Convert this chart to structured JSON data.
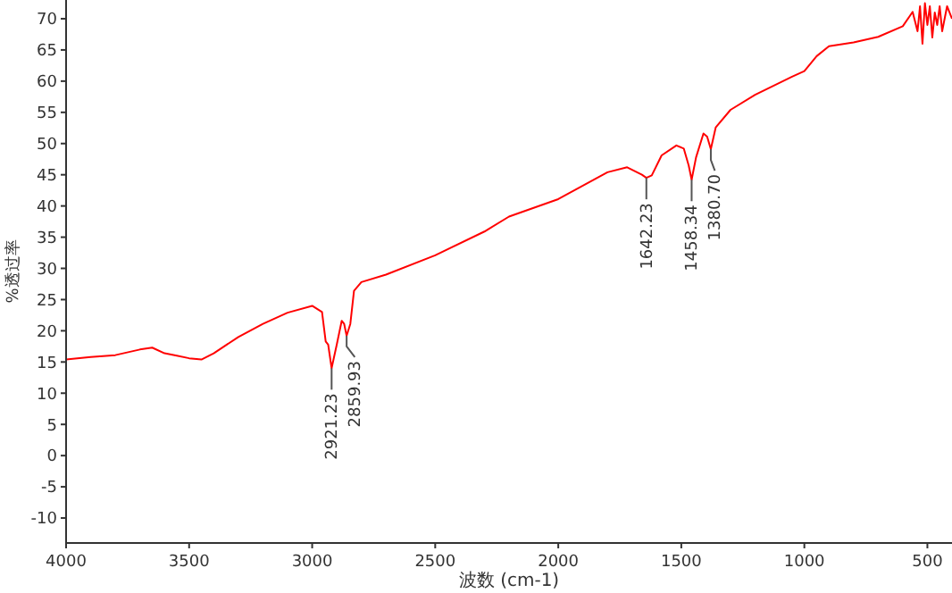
{
  "chart_data": {
    "type": "line",
    "xlabel": "波数 (cm-1)",
    "ylabel": "%透过率",
    "xlim": [
      4000,
      400
    ],
    "ylim": [
      -14,
      73
    ],
    "xticks": [
      4000,
      3500,
      3000,
      2500,
      2000,
      1500,
      1000,
      500
    ],
    "yticks": [
      -10,
      -5,
      0,
      5,
      10,
      15,
      20,
      25,
      30,
      35,
      40,
      45,
      50,
      55,
      60,
      65,
      70
    ],
    "grid": false,
    "marker": "none",
    "line_style": "solid",
    "series": [
      {
        "color": "#ff0000",
        "x": [
          4000,
          3900,
          3800,
          3700,
          3650,
          3600,
          3550,
          3500,
          3450,
          3400,
          3300,
          3200,
          3100,
          3000,
          2960,
          2945,
          2935,
          2921,
          2900,
          2880,
          2870,
          2860,
          2845,
          2830,
          2800,
          2700,
          2500,
          2300,
          2200,
          2000,
          1800,
          1720,
          1660,
          1642,
          1620,
          1580,
          1520,
          1490,
          1470,
          1458,
          1440,
          1410,
          1395,
          1380,
          1360,
          1300,
          1200,
          1050,
          1000,
          950,
          900,
          800,
          700,
          600,
          560,
          540,
          530,
          520,
          510,
          500,
          490,
          480,
          470,
          460,
          450,
          440,
          420,
          400
        ],
        "values": [
          15.4,
          15.8,
          16.1,
          17.0,
          17.3,
          16.4,
          16.0,
          15.6,
          15.4,
          16.4,
          19.0,
          21.1,
          22.9,
          24.0,
          23.0,
          18.3,
          17.8,
          14.0,
          17.8,
          21.6,
          21.1,
          19.2,
          21.1,
          26.4,
          27.8,
          29.0,
          32.1,
          35.9,
          38.3,
          41.1,
          45.4,
          46.2,
          45.0,
          44.5,
          44.9,
          48.1,
          49.7,
          49.2,
          46.5,
          44.2,
          47.8,
          51.6,
          51.1,
          49.1,
          52.6,
          55.4,
          57.8,
          60.7,
          61.6,
          64.0,
          65.6,
          66.2,
          67.1,
          68.8,
          71.1,
          68,
          72,
          66,
          72.5,
          69,
          72,
          67,
          71,
          69,
          72,
          68,
          72,
          70
        ]
      }
    ],
    "annotations": [
      {
        "text": "2921.23",
        "x": 2921,
        "y": 14.0
      },
      {
        "text": "2859.93",
        "x": 2860,
        "y": 19.2
      },
      {
        "text": "1642.23",
        "x": 1642,
        "y": 44.5
      },
      {
        "text": "1458.34",
        "x": 1458,
        "y": 44.2
      },
      {
        "text": "1380.70",
        "x": 1380,
        "y": 49.1
      }
    ]
  }
}
